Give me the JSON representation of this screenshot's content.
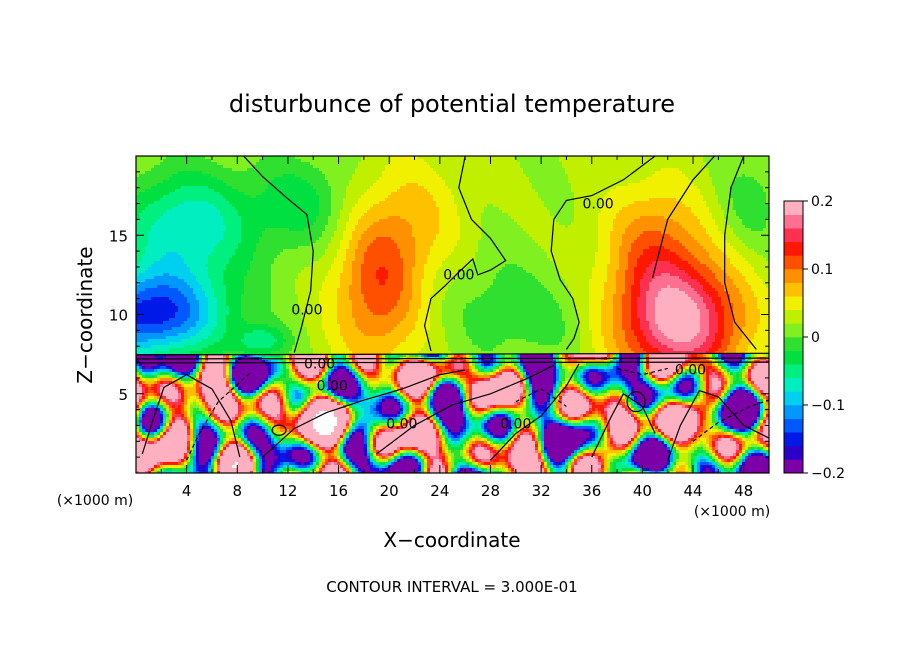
{
  "chart_data": {
    "type": "heatmap",
    "title": "disturbunce of potential temperature",
    "xlabel": "X−coordinate",
    "ylabel": "Z−coordinate",
    "x_unit": "(×1000 m)",
    "y_unit": "(×1000 m)",
    "xlim": [
      0,
      50
    ],
    "ylim": [
      0,
      20
    ],
    "x_ticks": [
      4,
      8,
      12,
      16,
      20,
      24,
      28,
      32,
      36,
      40,
      44,
      48
    ],
    "y_ticks": [
      5,
      10,
      15
    ],
    "colorbar": {
      "min": -0.2,
      "max": 0.2,
      "ticks": [
        {
          "value": 0.2,
          "label": "0.2"
        },
        {
          "value": 0.1,
          "label": "0.1"
        },
        {
          "value": 0.0,
          "label": "0"
        },
        {
          "value": -0.1,
          "label": "−0.1"
        },
        {
          "value": -0.2,
          "label": "−0.2"
        }
      ],
      "colors": [
        "#7b00a8",
        "#2c00c8",
        "#0018e8",
        "#0058ff",
        "#0098ff",
        "#00d0f0",
        "#00eec0",
        "#00f080",
        "#00e040",
        "#30e030",
        "#80f020",
        "#c0f000",
        "#f0f000",
        "#ffc000",
        "#ff9000",
        "#ff5000",
        "#ff1800",
        "#ff3050",
        "#ff7090",
        "#ffb0c0"
      ]
    },
    "contour_labels": [
      {
        "text": "0.00",
        "x": 13.5,
        "z": 10.0
      },
      {
        "text": "0.00",
        "x": 25.5,
        "z": 12.2
      },
      {
        "text": "0.00",
        "x": 36.5,
        "z": 16.7
      },
      {
        "text": "0.00",
        "x": 14.5,
        "z": 6.6
      },
      {
        "text": "0.00",
        "x": 15.5,
        "z": 5.2
      },
      {
        "text": "0.00",
        "x": 21.0,
        "z": 2.8
      },
      {
        "text": "0.00",
        "x": 30.0,
        "z": 2.8
      },
      {
        "text": "0.00",
        "x": 43.8,
        "z": 6.2
      }
    ],
    "contour_interval": "CONTOUR INTERVAL = 3.000E-01"
  }
}
